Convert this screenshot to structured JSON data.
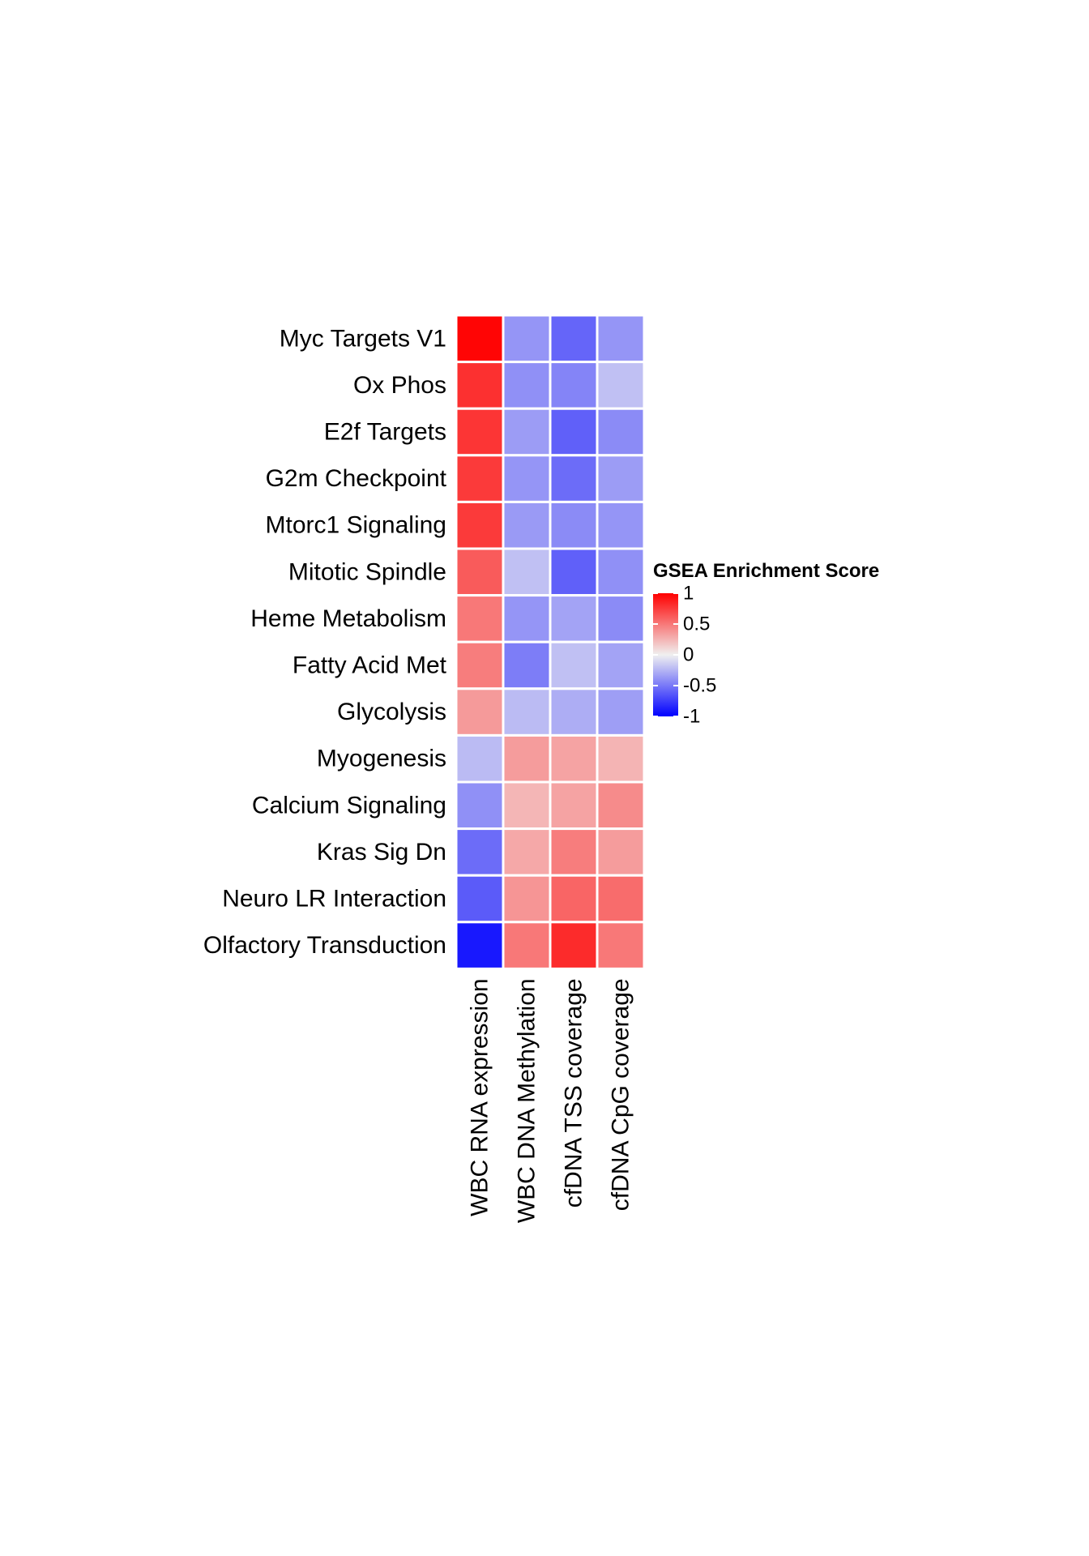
{
  "chart_data": {
    "type": "heatmap",
    "rows": [
      "Myc Targets V1",
      "Ox Phos",
      "E2f Targets",
      "G2m Checkpoint",
      "Mtorc1 Signaling",
      "Mitotic Spindle",
      "Heme Metabolism",
      "Fatty Acid Met",
      "Glycolysis",
      "Myogenesis",
      "Calcium Signaling",
      "Kras Sig Dn",
      "Neuro LR Interaction",
      "Olfactory Transduction"
    ],
    "columns": [
      "WBC RNA expression",
      "WBC DNA Methylation",
      "cfDNA TSS coverage",
      "cfDNA CpG coverage"
    ],
    "values": [
      [
        0.98,
        -0.38,
        -0.58,
        -0.38
      ],
      [
        0.8,
        -0.4,
        -0.45,
        -0.2
      ],
      [
        0.78,
        -0.35,
        -0.6,
        -0.42
      ],
      [
        0.76,
        -0.38,
        -0.55,
        -0.35
      ],
      [
        0.76,
        -0.36,
        -0.42,
        -0.38
      ],
      [
        0.62,
        -0.2,
        -0.6,
        -0.4
      ],
      [
        0.5,
        -0.38,
        -0.32,
        -0.42
      ],
      [
        0.48,
        -0.48,
        -0.2,
        -0.32
      ],
      [
        0.36,
        -0.22,
        -0.28,
        -0.34
      ],
      [
        -0.22,
        0.35,
        0.32,
        0.25
      ],
      [
        -0.4,
        0.24,
        0.32,
        0.42
      ],
      [
        -0.55,
        0.3,
        0.48,
        0.35
      ],
      [
        -0.62,
        0.38,
        0.58,
        0.55
      ],
      [
        -0.9,
        0.5,
        0.82,
        0.5
      ]
    ],
    "colorscale": {
      "low": "#0000ff",
      "mid": "#f0f0f0",
      "high": "#ff0000",
      "min": -1,
      "max": 1
    },
    "legend": {
      "title": "GSEA Enrichment Score",
      "ticks": [
        {
          "value": 1,
          "label": "1"
        },
        {
          "value": 0.5,
          "label": "0.5"
        },
        {
          "value": 0,
          "label": "0"
        },
        {
          "value": -0.5,
          "label": "-0.5"
        },
        {
          "value": -1,
          "label": "-1"
        }
      ],
      "position": "right"
    },
    "title": "",
    "xlabel": "",
    "ylabel": ""
  }
}
